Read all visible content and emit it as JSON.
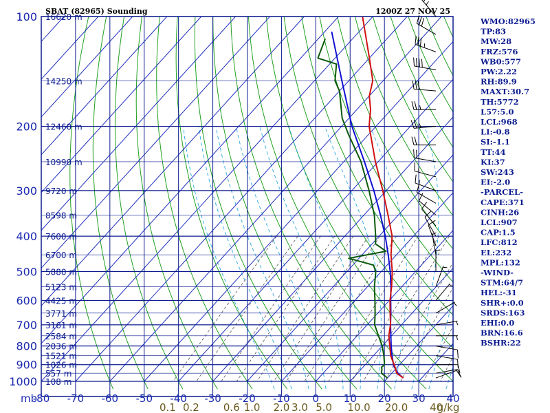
{
  "header": {
    "title": "SBAT (82965) Sounding",
    "time": "1200Z 27 NOV 25"
  },
  "colors": {
    "frame": "#0b1b8f",
    "isotherm": "#1f2fbf",
    "dry_adiabat": "#20a020",
    "moist_adiabat": "#2aa7e0",
    "mixing_ratio": "#555555",
    "temperature": "#d01010",
    "dewpoint": "#0a5a0a",
    "parcel": "#1010d0",
    "wind": "#000000",
    "mixing_ratio_label": "#6a5a1e",
    "axis_label": "#1a2ab0"
  },
  "chart_data": {
    "type": "line",
    "title": "SBAT (82965) Sounding",
    "skew": "skew-T log-p",
    "pressure_unit": "mb",
    "pressure_range": [
      1000,
      100
    ],
    "temperature_range_c": [
      -80,
      40
    ],
    "pressure_levels": [
      100,
      200,
      300,
      400,
      500,
      600,
      700,
      800,
      900,
      1000
    ],
    "pressure_tick_labels": [
      "100",
      "200",
      "300",
      "400",
      "500",
      "600",
      "700",
      "800",
      "900",
      "1000"
    ],
    "temperature_ticks": [
      -80,
      -70,
      -60,
      -50,
      -40,
      -30,
      -20,
      -10,
      0,
      10,
      20,
      30,
      40
    ],
    "temperature_tick_labels": [
      "-80",
      "-70",
      "-60",
      "-50",
      "-40",
      "-30",
      "-20",
      "-10",
      "0",
      "10",
      "20",
      "30",
      "40"
    ],
    "axis_unit_label": "mb",
    "heights": [
      {
        "p": 100,
        "label": "16620 m"
      },
      {
        "p": 150,
        "label": "14250 m"
      },
      {
        "p": 200,
        "label": "12460 m"
      },
      {
        "p": 250,
        "label": "10990 m"
      },
      {
        "p": 300,
        "label": "9720 m"
      },
      {
        "p": 350,
        "label": "8598 m"
      },
      {
        "p": 400,
        "label": "7600 m"
      },
      {
        "p": 450,
        "label": "6700 m"
      },
      {
        "p": 500,
        "label": "5880 m"
      },
      {
        "p": 550,
        "label": "5123 m"
      },
      {
        "p": 600,
        "label": "4425 m"
      },
      {
        "p": 650,
        "label": "3771 m"
      },
      {
        "p": 700,
        "label": "3161 m"
      },
      {
        "p": 750,
        "label": "2584 m"
      },
      {
        "p": 800,
        "label": "2036 m"
      },
      {
        "p": 850,
        "label": "1521 m"
      },
      {
        "p": 900,
        "label": "1026 m"
      },
      {
        "p": 950,
        "label": "557 m"
      },
      {
        "p": 1000,
        "label": "108 m"
      }
    ],
    "mixing_ratio_labels": [
      {
        "w": 0.1,
        "label": "0.1"
      },
      {
        "w": 0.2,
        "label": "0.2"
      },
      {
        "w": 0.6,
        "label": "0.6"
      },
      {
        "w": 1.0,
        "label": "1.0"
      },
      {
        "w": 2.0,
        "label": "2.0"
      },
      {
        "w": 3.0,
        "label": "3.0"
      },
      {
        "w": 5.0,
        "label": "5.0"
      },
      {
        "w": 10.0,
        "label": "10.0"
      },
      {
        "w": 20.0,
        "label": "20.0"
      },
      {
        "w": 40.0,
        "label": "40"
      }
    ],
    "mixing_ratio_unit": "g/kg",
    "series": [
      {
        "name": "Temperature",
        "points": [
          {
            "p": 979,
            "t": 24.6
          },
          {
            "p": 950,
            "t": 21.4
          },
          {
            "p": 925,
            "t": 20.0
          },
          {
            "p": 900,
            "t": 18.4
          },
          {
            "p": 850,
            "t": 15.0
          },
          {
            "p": 800,
            "t": 12.2
          },
          {
            "p": 750,
            "t": 9.2
          },
          {
            "p": 700,
            "t": 6.8
          },
          {
            "p": 650,
            "t": 3.6
          },
          {
            "p": 600,
            "t": 0.2
          },
          {
            "p": 550,
            "t": -3.0
          },
          {
            "p": 500,
            "t": -6.8
          },
          {
            "p": 450,
            "t": -11.6
          },
          {
            "p": 400,
            "t": -16.2
          },
          {
            "p": 350,
            "t": -23.0
          },
          {
            "p": 300,
            "t": -31.0
          },
          {
            "p": 250,
            "t": -40.8
          },
          {
            "p": 200,
            "t": -52.0
          },
          {
            "p": 180,
            "t": -56.0
          },
          {
            "p": 165,
            "t": -60.0
          },
          {
            "p": 150,
            "t": -63.0
          },
          {
            "p": 130,
            "t": -70.0
          },
          {
            "p": 100,
            "t": -83.0
          }
        ]
      },
      {
        "name": "Dewpoint",
        "points": [
          {
            "p": 979,
            "t": 20.0
          },
          {
            "p": 950,
            "t": 17.0
          },
          {
            "p": 925,
            "t": 16.0
          },
          {
            "p": 915,
            "t": 15.4
          },
          {
            "p": 900,
            "t": 15.6
          },
          {
            "p": 850,
            "t": 13.0
          },
          {
            "p": 800,
            "t": 10.0
          },
          {
            "p": 750,
            "t": 6.2
          },
          {
            "p": 700,
            "t": 2.2
          },
          {
            "p": 650,
            "t": -0.8
          },
          {
            "p": 600,
            "t": -4.2
          },
          {
            "p": 550,
            "t": -8.0
          },
          {
            "p": 500,
            "t": -11.6
          },
          {
            "p": 480,
            "t": -14.0
          },
          {
            "p": 460,
            "t": -23.0
          },
          {
            "p": 440,
            "t": -14.0
          },
          {
            "p": 420,
            "t": -19.0
          },
          {
            "p": 400,
            "t": -21.0
          },
          {
            "p": 350,
            "t": -27.0
          },
          {
            "p": 300,
            "t": -35.0
          },
          {
            "p": 250,
            "t": -45.0
          },
          {
            "p": 210,
            "t": -56.0
          },
          {
            "p": 190,
            "t": -62.0
          },
          {
            "p": 160,
            "t": -70.0
          },
          {
            "p": 150,
            "t": -74.0
          },
          {
            "p": 135,
            "t": -78.0
          },
          {
            "p": 130,
            "t": -85.0
          },
          {
            "p": 115,
            "t": -88.0
          }
        ]
      },
      {
        "name": "Parcel",
        "points": [
          {
            "p": 979,
            "t": 24.6
          },
          {
            "p": 950,
            "t": 21.8
          },
          {
            "p": 907,
            "t": 18.6
          },
          {
            "p": 850,
            "t": 15.4
          },
          {
            "p": 800,
            "t": 12.6
          },
          {
            "p": 750,
            "t": 9.8
          },
          {
            "p": 700,
            "t": 6.8
          },
          {
            "p": 650,
            "t": 3.8
          },
          {
            "p": 600,
            "t": 0.4
          },
          {
            "p": 550,
            "t": -3.2
          },
          {
            "p": 500,
            "t": -7.4
          },
          {
            "p": 450,
            "t": -12.4
          },
          {
            "p": 400,
            "t": -18.2
          },
          {
            "p": 350,
            "t": -25.2
          },
          {
            "p": 300,
            "t": -33.6
          },
          {
            "p": 250,
            "t": -44.0
          },
          {
            "p": 200,
            "t": -57.0
          },
          {
            "p": 150,
            "t": -72.0
          },
          {
            "p": 110,
            "t": -88.0
          }
        ]
      }
    ],
    "wind_barbs": [
      {
        "p": 100,
        "dir": 320,
        "spd": 25
      },
      {
        "p": 112,
        "dir": 300,
        "spd": 30
      },
      {
        "p": 125,
        "dir": 290,
        "spd": 35
      },
      {
        "p": 140,
        "dir": 280,
        "spd": 40
      },
      {
        "p": 160,
        "dir": 275,
        "spd": 30
      },
      {
        "p": 180,
        "dir": 270,
        "spd": 25
      },
      {
        "p": 200,
        "dir": 265,
        "spd": 25
      },
      {
        "p": 225,
        "dir": 270,
        "spd": 20
      },
      {
        "p": 250,
        "dir": 280,
        "spd": 20
      },
      {
        "p": 275,
        "dir": 285,
        "spd": 15
      },
      {
        "p": 300,
        "dir": 290,
        "spd": 15
      },
      {
        "p": 325,
        "dir": 300,
        "spd": 10
      },
      {
        "p": 350,
        "dir": 310,
        "spd": 10
      },
      {
        "p": 375,
        "dir": 320,
        "spd": 10
      },
      {
        "p": 400,
        "dir": 330,
        "spd": 10
      },
      {
        "p": 425,
        "dir": 340,
        "spd": 10
      },
      {
        "p": 450,
        "dir": 350,
        "spd": 5
      },
      {
        "p": 500,
        "dir": 360,
        "spd": 5
      },
      {
        "p": 550,
        "dir": 20,
        "spd": 5
      },
      {
        "p": 600,
        "dir": 40,
        "spd": 5
      },
      {
        "p": 650,
        "dir": 60,
        "spd": 5
      },
      {
        "p": 700,
        "dir": 80,
        "spd": 5
      },
      {
        "p": 750,
        "dir": 90,
        "spd": 5
      },
      {
        "p": 800,
        "dir": 100,
        "spd": 10
      },
      {
        "p": 850,
        "dir": 100,
        "spd": 10
      },
      {
        "p": 900,
        "dir": 90,
        "spd": 10
      },
      {
        "p": 950,
        "dir": 80,
        "spd": 10
      },
      {
        "p": 979,
        "dir": 70,
        "spd": 10
      }
    ],
    "indices": [
      "WMO:82965",
      "TP:83",
      "MW:28",
      "FRZ:576",
      "WB0:577",
      "PW:2.22",
      "RH:89.9",
      "MAXT:30.7",
      "TH:5772",
      "L57:5.0",
      "LCL:968",
      "LI:-0.8",
      "SI:-1.1",
      "TT:44",
      "KI:37",
      "SW:243",
      "EI:-2.0",
      "-PARCEL-",
      "CAPE:371",
      "CINH:26",
      "LCL:907",
      "CAP:1.5",
      "LFC:812",
      "EL:232",
      "MPL:132",
      "-WIND-",
      "STM:64/7",
      "HEL:-31",
      "SHR+:0.0",
      "SRDS:163",
      "EHI:0.0",
      "BRN:16.6",
      "BSHR:22"
    ]
  }
}
